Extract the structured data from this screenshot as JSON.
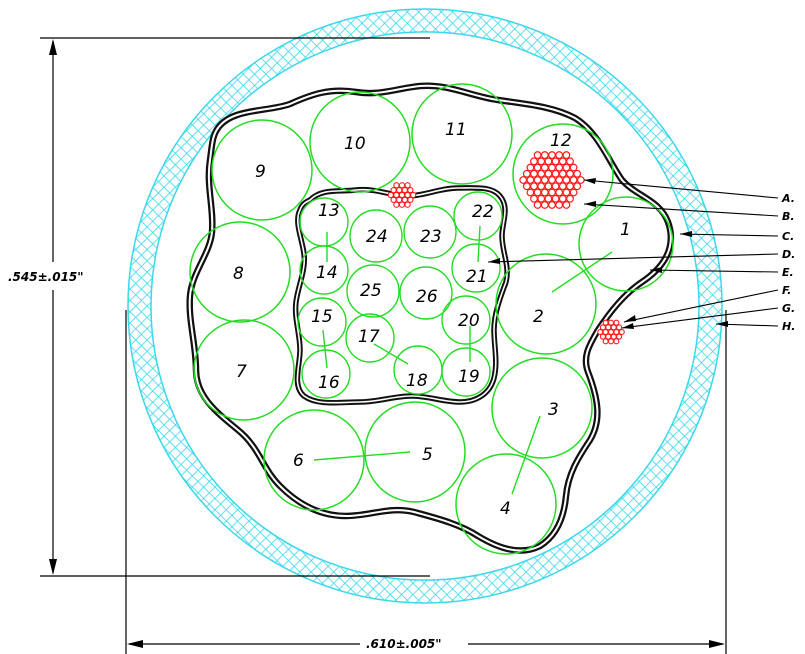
{
  "colors": {
    "jacket": "#39d8ec",
    "conductor": "#22dd22",
    "strand": "#ff1a1a",
    "shield": "#111111",
    "text": "#000000"
  },
  "dimensions": {
    "height": ".545±.015\"",
    "width": ".610±.005\""
  },
  "callouts": [
    "A.",
    "B.",
    "C.",
    "D.",
    "E.",
    "F.",
    "G.",
    "H."
  ],
  "conductors": {
    "c1": "1",
    "c2": "2",
    "c3": "3",
    "c4": "4",
    "c5": "5",
    "c6": "6",
    "c7": "7",
    "c8": "8",
    "c9": "9",
    "c10": "10",
    "c11": "11",
    "c12": "12",
    "c13": "13",
    "c14": "14",
    "c15": "15",
    "c16": "16",
    "c17": "17",
    "c18": "18",
    "c19": "19",
    "c20": "20",
    "c21": "21",
    "c22": "22",
    "c23": "23",
    "c24": "24",
    "c25": "25",
    "c26": "26"
  }
}
